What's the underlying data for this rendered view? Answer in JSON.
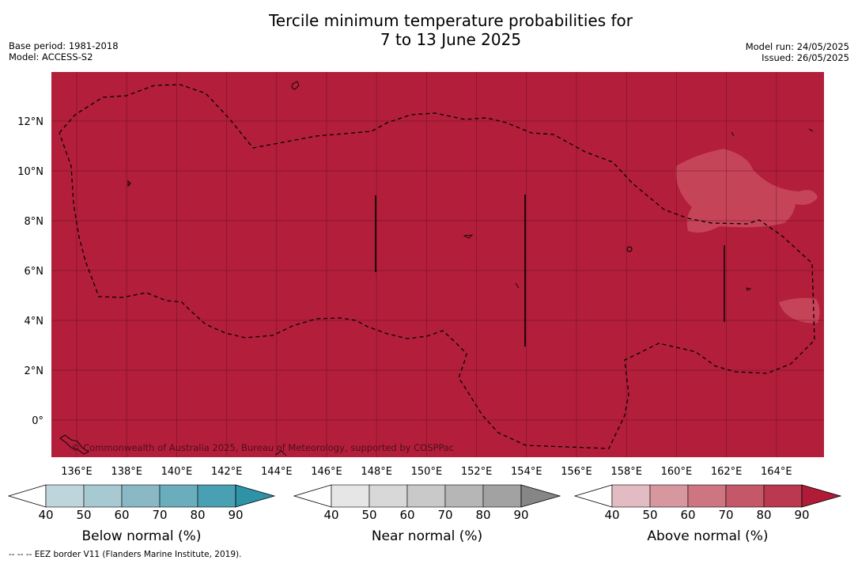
{
  "header": {
    "title_line1": "Tercile minimum temperature probabilities for",
    "title_line2": "7 to 13 June 2025",
    "left_line1": "Base period: 1981-2018",
    "left_line2": "Model: ACCESS-S2",
    "right_line1": "Model run: 24/05/2025",
    "right_line2": "Issued: 26/05/2025"
  },
  "map": {
    "background_color": "#b31e3b",
    "light_patch_color": "#c64458",
    "lon_labels": [
      "136°E",
      "138°E",
      "140°E",
      "142°E",
      "144°E",
      "146°E",
      "148°E",
      "150°E",
      "152°E",
      "154°E",
      "156°E",
      "158°E",
      "160°E",
      "162°E",
      "164°E"
    ],
    "lat_labels": [
      "12°N",
      "10°N",
      "8°N",
      "6°N",
      "4°N",
      "2°N",
      "0°"
    ],
    "copyright": "© Commonwealth of Australia 2025, Bureau of Meteorology, supported by COSPPac"
  },
  "colorbars": [
    {
      "label": "Below normal (%)",
      "ticks": [
        "40",
        "50",
        "60",
        "70",
        "80",
        "90"
      ],
      "colors": [
        "#bfd5dc",
        "#a7c9d1",
        "#8ab8c4",
        "#6aadbc",
        "#48a0b2",
        "#2e93a6"
      ]
    },
    {
      "label": "Near normal (%)",
      "ticks": [
        "40",
        "50",
        "60",
        "70",
        "80",
        "90"
      ],
      "colors": [
        "#e6e6e6",
        "#d8d8d8",
        "#c9c9c9",
        "#b6b6b6",
        "#a2a2a2",
        "#868686"
      ]
    },
    {
      "label": "Above normal (%)",
      "ticks": [
        "40",
        "50",
        "60",
        "70",
        "80",
        "90"
      ],
      "colors": [
        "#e2bcc2",
        "#d7979e",
        "#cd7681",
        "#c45868",
        "#ba3850",
        "#b01c38"
      ]
    }
  ],
  "footnote": "--  --  -- EEZ border V11 (Flanders Marine Institute, 2019)."
}
